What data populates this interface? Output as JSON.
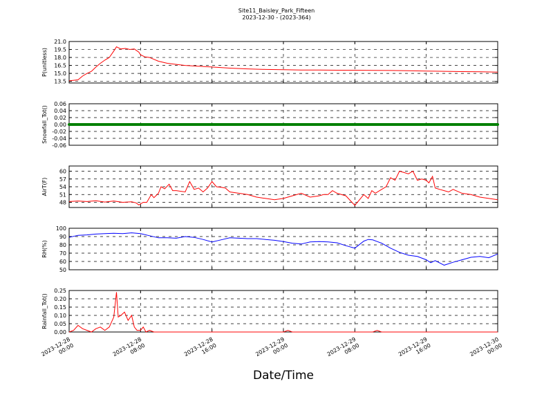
{
  "chart_title": "Site11_Baisley_Park_Fifteen",
  "chart_subtitle": "2023-12-30 - (2023-364)",
  "xlabel": "Date/Time",
  "x_ticks": [
    {
      "line1": "2023-12-28",
      "line2": "00:00"
    },
    {
      "line1": "2023-12-28",
      "line2": "08:00"
    },
    {
      "line1": "2023-12-28",
      "line2": "16:00"
    },
    {
      "line1": "2023-12-29",
      "line2": "00:00"
    },
    {
      "line1": "2023-12-29",
      "line2": "08:00"
    },
    {
      "line1": "2023-12-29",
      "line2": "16:00"
    },
    {
      "line1": "2023-12-30",
      "line2": "00:00"
    }
  ],
  "x_range_hours": [
    0,
    48
  ],
  "grid": true,
  "chart_data": [
    {
      "type": "line",
      "ylabel": "P(unitless)",
      "ylim": [
        13.2,
        21.0
      ],
      "yticks": [
        "13.5",
        "15.0",
        "16.5",
        "18.0",
        "19.5",
        "21.0"
      ],
      "color": "#ff0000",
      "series": [
        {
          "x": [
            0,
            1,
            1.5,
            2,
            2.5,
            3,
            3.5,
            4,
            4.5,
            5,
            5.3,
            5.8,
            6.3,
            6.8,
            7.3,
            7.8,
            8,
            8.5,
            9,
            10,
            11,
            12,
            13,
            14,
            16,
            18,
            20,
            22,
            24,
            26,
            28,
            30,
            32,
            34,
            36,
            38,
            40,
            42,
            44,
            46,
            48
          ],
          "values": [
            13.6,
            13.8,
            14.5,
            15.0,
            15.4,
            16.2,
            16.9,
            17.5,
            18.0,
            19.2,
            20.0,
            19.6,
            19.7,
            19.5,
            19.6,
            19.0,
            18.5,
            18.1,
            18.0,
            17.3,
            16.9,
            16.7,
            16.5,
            16.4,
            16.2,
            16.0,
            15.85,
            15.75,
            15.7,
            15.65,
            15.65,
            15.6,
            15.6,
            15.58,
            15.55,
            15.5,
            15.45,
            15.4,
            15.35,
            15.3,
            15.25
          ]
        }
      ]
    },
    {
      "type": "line",
      "ylabel": "Snowfall_Tot()",
      "ylim": [
        -0.06,
        0.06
      ],
      "yticks": [
        "-0.06",
        "-0.04",
        "-0.02",
        "0.00",
        "0.02",
        "0.04",
        "0.06"
      ],
      "color": "#008000",
      "markers": true,
      "series": [
        {
          "x": [
            0,
            48
          ],
          "values": [
            0.0,
            0.0
          ]
        }
      ]
    },
    {
      "type": "line",
      "ylabel": "AirT(F)",
      "ylim": [
        46,
        62
      ],
      "yticks": [
        "48",
        "51",
        "54",
        "57",
        "60"
      ],
      "color": "#ff0000",
      "series": [
        {
          "x": [
            0,
            1,
            2,
            3,
            4,
            5,
            6,
            7,
            7.5,
            7.8,
            8.3,
            8.7,
            9.2,
            9.5,
            10,
            10.3,
            10.7,
            11.2,
            11.6,
            12,
            13,
            13.5,
            14,
            14.5,
            15,
            15.5,
            16,
            16.5,
            17,
            17.5,
            18,
            19,
            20,
            21,
            22,
            23,
            24,
            25,
            26,
            27,
            28,
            28.5,
            29,
            29.5,
            30,
            31,
            32,
            33,
            33.5,
            33.9,
            34.3,
            35,
            35.5,
            36,
            36.5,
            37,
            37.5,
            38,
            38.5,
            39,
            39.5,
            40,
            40.3,
            40.7,
            41,
            41.5,
            42,
            42.5,
            43,
            44,
            45,
            46,
            47,
            48
          ],
          "values": [
            48.3,
            48.5,
            48.3,
            48.6,
            48.1,
            48.5,
            48.0,
            48.2,
            47.8,
            47.0,
            48.0,
            48.0,
            51.0,
            49.8,
            51.5,
            54.0,
            53.2,
            55.0,
            52.5,
            52.5,
            52.0,
            56.0,
            53.0,
            53.5,
            52.0,
            53.5,
            56.0,
            54.0,
            53.8,
            53.5,
            52.0,
            51.5,
            51.0,
            50.0,
            49.5,
            49.0,
            49.5,
            50.5,
            51.5,
            50.0,
            50.5,
            51.0,
            51.0,
            52.5,
            51.5,
            50.5,
            46.8,
            51.0,
            49.5,
            52.5,
            51.5,
            53.0,
            54.0,
            57.5,
            56.5,
            60.0,
            59.5,
            59.0,
            60.0,
            56.5,
            57.0,
            56.5,
            55.5,
            58.0,
            53.5,
            53.0,
            52.5,
            52.0,
            53.0,
            51.5,
            51.0,
            50.0,
            49.5,
            49.0
          ]
        }
      ]
    },
    {
      "type": "line",
      "ylabel": "RH(%)",
      "ylim": [
        50,
        100
      ],
      "yticks": [
        "50",
        "60",
        "70",
        "80",
        "90",
        "100"
      ],
      "color": "#0000ff",
      "series": [
        {
          "x": [
            0,
            1,
            2,
            3,
            4,
            5,
            6,
            7,
            8,
            9,
            10,
            11,
            12,
            13,
            14,
            15,
            16,
            17,
            18,
            19,
            20,
            21,
            22,
            23,
            24,
            25,
            26,
            27,
            28,
            29,
            30,
            31,
            32,
            33,
            33.5,
            34,
            34.5,
            35,
            36,
            37,
            38,
            39,
            40,
            40.5,
            41,
            42,
            43,
            44,
            45,
            46,
            47,
            48
          ],
          "values": [
            89.0,
            91.5,
            92.0,
            93.0,
            93.5,
            94.0,
            93.5,
            94.5,
            93.5,
            91.0,
            88.5,
            88.5,
            88.0,
            90.0,
            89.0,
            86.5,
            83.5,
            86.0,
            88.5,
            88.0,
            87.5,
            87.5,
            86.5,
            85.5,
            84.0,
            82.0,
            81.0,
            83.5,
            84.0,
            83.5,
            82.5,
            79.0,
            76.0,
            84.5,
            86.5,
            86.0,
            84.0,
            82.0,
            76.0,
            71.0,
            67.5,
            66.0,
            62.0,
            58.5,
            61.0,
            55.5,
            59.0,
            62.0,
            65.0,
            66.0,
            64.5,
            69.0
          ]
        }
      ]
    },
    {
      "type": "line",
      "ylabel": "Rainfall_Tot()",
      "ylim": [
        0,
        0.25
      ],
      "yticks": [
        "0.00",
        "0.05",
        "0.10",
        "0.15",
        "0.20",
        "0.25"
      ],
      "color": "#ff0000",
      "series": [
        {
          "x": [
            0,
            0.5,
            1,
            1.5,
            2,
            2.5,
            3,
            3.5,
            4,
            4.5,
            5,
            5.3,
            5.5,
            5.8,
            6.2,
            6.6,
            7,
            7.3,
            7.6,
            8,
            8.3,
            8.6,
            9,
            9.5,
            10,
            24,
            24.5,
            25,
            34,
            34.5,
            35,
            48
          ],
          "values": [
            0.0,
            0.01,
            0.04,
            0.02,
            0.01,
            0.0,
            0.02,
            0.03,
            0.01,
            0.03,
            0.09,
            0.24,
            0.09,
            0.1,
            0.12,
            0.07,
            0.1,
            0.03,
            0.01,
            0.01,
            0.03,
            0.0,
            0.01,
            0.0,
            0.0,
            0.0,
            0.01,
            0.0,
            0.0,
            0.01,
            0.0,
            0.0
          ]
        }
      ]
    }
  ]
}
